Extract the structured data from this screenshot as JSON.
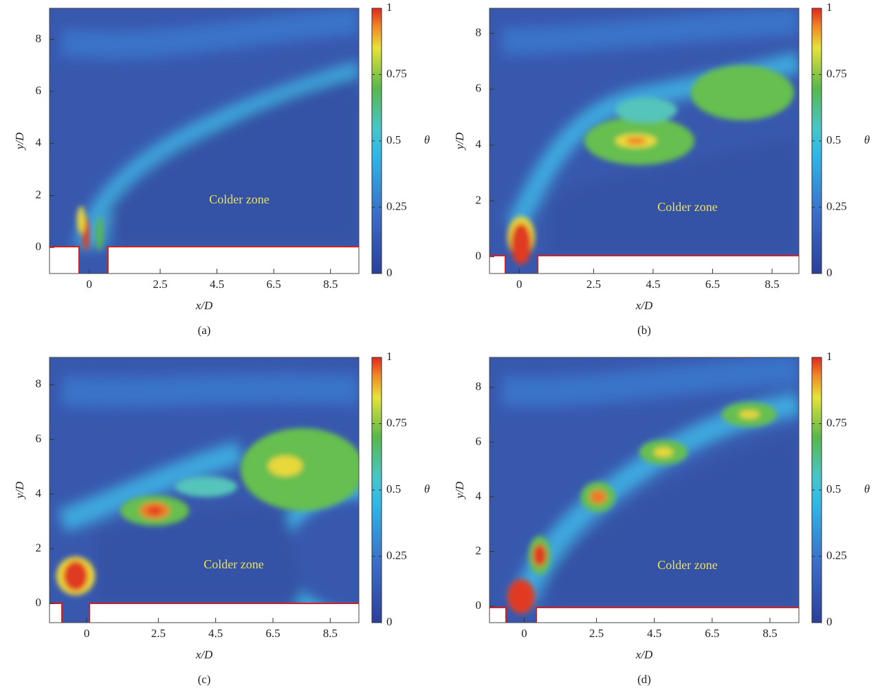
{
  "chart_data": [
    {
      "type": "contour",
      "xlabel": "x/D",
      "ylabel": "y/D",
      "colorbar_label": "θ",
      "annotation": "Colder zone",
      "caption": "(a)",
      "xlim": [
        -1.4,
        9.5
      ],
      "ylim": [
        -1.0,
        9.2
      ],
      "xticks": [
        0,
        2.5,
        4.5,
        6.5,
        8.5
      ],
      "yticks": [
        0,
        2,
        4,
        6,
        8
      ],
      "colorbar_lim": [
        0,
        1
      ],
      "colorbar_ticks": [
        0,
        0.25,
        0.5,
        0.75,
        1
      ]
    },
    {
      "type": "contour",
      "xlabel": "x/D",
      "ylabel": "y/D",
      "colorbar_label": "θ",
      "annotation": "Colder zone",
      "caption": "(b)",
      "xlim": [
        -1.0,
        9.4
      ],
      "ylim": [
        -0.6,
        8.9
      ],
      "xticks": [
        0,
        2.5,
        4.5,
        6.5,
        8.5
      ],
      "yticks": [
        0,
        2,
        4,
        6,
        8
      ],
      "colorbar_lim": [
        0,
        1
      ],
      "colorbar_ticks": [
        0,
        0.25,
        0.5,
        0.75,
        1
      ]
    },
    {
      "type": "contour",
      "xlabel": "x/D",
      "ylabel": "y/D",
      "colorbar_label": "θ",
      "annotation": "Colder zone",
      "caption": "(c)",
      "xlim": [
        -1.3,
        9.5
      ],
      "ylim": [
        -0.7,
        9.0
      ],
      "xticks": [
        0,
        2.5,
        4.5,
        6.5,
        8.5
      ],
      "yticks": [
        0,
        2,
        4,
        6,
        8
      ],
      "colorbar_lim": [
        0,
        1
      ],
      "colorbar_ticks": [
        0,
        0.25,
        0.5,
        0.75,
        1
      ]
    },
    {
      "type": "contour",
      "xlabel": "x/D",
      "ylabel": "y/D",
      "colorbar_label": "θ",
      "annotation": "Colder zone",
      "caption": "(d)",
      "xlim": [
        -1.2,
        9.5
      ],
      "ylim": [
        -0.6,
        9.1
      ],
      "xticks": [
        0,
        2.5,
        4.5,
        6.5,
        8.5
      ],
      "yticks": [
        0,
        2,
        4,
        6,
        8
      ],
      "colorbar_lim": [
        0,
        1
      ],
      "colorbar_ticks": [
        0,
        0.25,
        0.5,
        0.75,
        1
      ]
    }
  ]
}
